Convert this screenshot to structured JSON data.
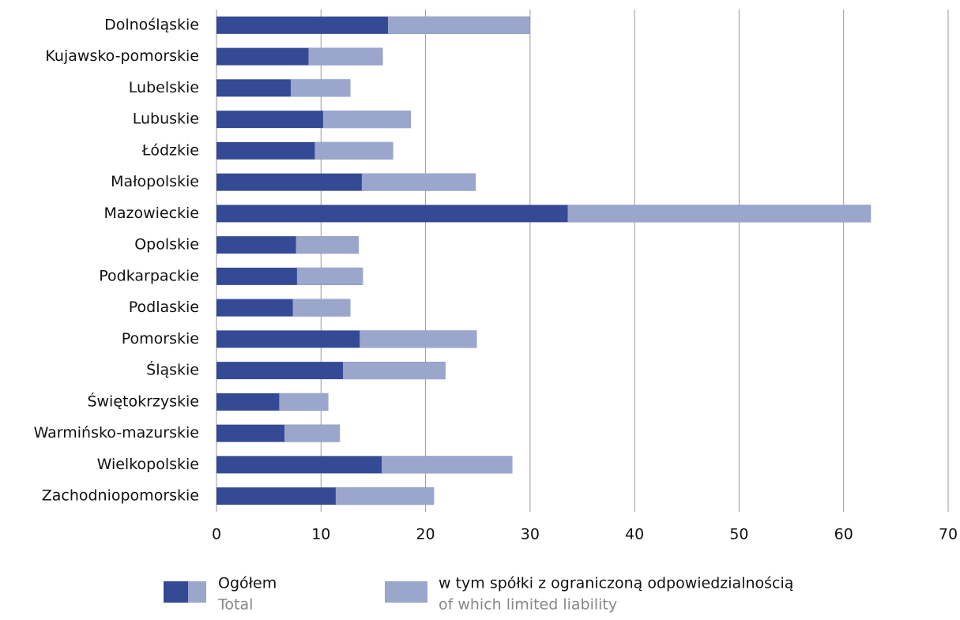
{
  "chart_data": {
    "type": "bar",
    "orientation": "horizontal",
    "categories": [
      "Dolnośląskie",
      "Kujawsko-pomorskie",
      "Lubelskie",
      "Lubuskie",
      "Łódzkie",
      "Małopolskie",
      "Mazowieckie",
      "Opolskie",
      "Podkarpackie",
      "Podlaskie",
      "Pomorskie",
      "Śląskie",
      "Świętokrzyskie",
      "Warmińsko-mazurskie",
      "Wielkopolskie",
      "Zachodniopomorskie"
    ],
    "series": [
      {
        "name": "Ogółem",
        "name_en": "Total",
        "color": "#354a94",
        "values": [
          30.0,
          15.9,
          12.8,
          18.6,
          16.9,
          24.8,
          62.6,
          13.6,
          14.0,
          12.8,
          24.9,
          21.9,
          10.7,
          11.8,
          28.3,
          20.8
        ]
      },
      {
        "name": "w tym spółki z ograniczoną odpowiedzialnością",
        "name_en": "of which limited liability",
        "color": "#9aa6cc",
        "values": [
          13.6,
          7.1,
          5.7,
          8.4,
          7.5,
          10.9,
          29.0,
          6.0,
          6.3,
          5.5,
          11.2,
          9.8,
          4.7,
          5.3,
          12.5,
          9.4
        ]
      }
    ],
    "xlim": [
      0,
      70
    ],
    "xticks": [
      0,
      10,
      20,
      30,
      40,
      50,
      60,
      70
    ],
    "grid": true
  }
}
